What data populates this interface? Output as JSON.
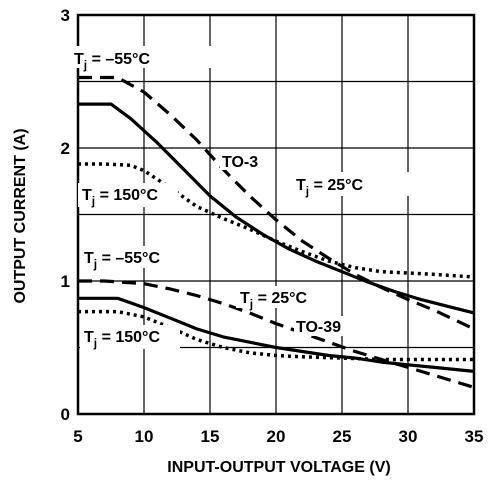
{
  "chart_data": {
    "type": "line",
    "title": "",
    "xlabel": "INPUT-OUTPUT VOLTAGE (V)",
    "ylabel": "OUTPUT CURRENT (A)",
    "xlim": [
      5,
      35
    ],
    "ylim": [
      0,
      3
    ],
    "xticks": [
      "5",
      "10",
      "15",
      "20",
      "25",
      "30",
      "35"
    ],
    "yticks": [
      "0",
      "1",
      "2",
      "3"
    ],
    "grid": true,
    "series": [
      {
        "name": "TO-3, Tj = -55°C",
        "style": "dashed",
        "x": [
          5,
          8,
          10,
          12,
          14,
          16,
          18,
          20,
          22,
          24,
          26,
          28,
          30,
          32,
          35
        ],
        "y": [
          2.53,
          2.53,
          2.42,
          2.25,
          2.06,
          1.84,
          1.64,
          1.46,
          1.3,
          1.17,
          1.05,
          0.95,
          0.86,
          0.78,
          0.64
        ]
      },
      {
        "name": "TO-3, Tj = 25°C",
        "style": "solid",
        "x": [
          5,
          7.5,
          9,
          11,
          13,
          15,
          17,
          19,
          21,
          23,
          25,
          27,
          29,
          31,
          33,
          35
        ],
        "y": [
          2.33,
          2.33,
          2.22,
          2.04,
          1.84,
          1.64,
          1.48,
          1.35,
          1.24,
          1.15,
          1.07,
          0.99,
          0.92,
          0.86,
          0.81,
          0.76
        ]
      },
      {
        "name": "TO-3, Tj = 150°C",
        "style": "dotted",
        "x": [
          5,
          7,
          9,
          10,
          12,
          14,
          16,
          18,
          20,
          22,
          24,
          26,
          28,
          30,
          32,
          35
        ],
        "y": [
          1.88,
          1.88,
          1.87,
          1.83,
          1.7,
          1.56,
          1.47,
          1.39,
          1.3,
          1.22,
          1.15,
          1.1,
          1.07,
          1.06,
          1.05,
          1.03
        ]
      },
      {
        "name": "TO-39, Tj = -55°C",
        "style": "dashed",
        "x": [
          5,
          7,
          10,
          12,
          14,
          16,
          18,
          20,
          22,
          24,
          26,
          28,
          30,
          32,
          35
        ],
        "y": [
          1.0,
          1.0,
          0.98,
          0.94,
          0.89,
          0.83,
          0.76,
          0.68,
          0.61,
          0.54,
          0.47,
          0.41,
          0.35,
          0.29,
          0.2
        ]
      },
      {
        "name": "TO-39, Tj = 25°C",
        "style": "solid",
        "x": [
          5,
          8,
          10,
          12,
          14,
          16,
          18,
          20,
          22,
          24,
          26,
          28,
          30,
          32,
          35
        ],
        "y": [
          0.87,
          0.87,
          0.8,
          0.72,
          0.64,
          0.58,
          0.54,
          0.5,
          0.47,
          0.44,
          0.42,
          0.39,
          0.37,
          0.35,
          0.32
        ]
      },
      {
        "name": "TO-39, Tj = 150°C",
        "style": "dotted",
        "x": [
          5,
          8,
          10,
          12,
          14,
          16,
          18,
          20,
          22,
          25,
          28,
          30,
          35
        ],
        "y": [
          0.77,
          0.77,
          0.73,
          0.65,
          0.56,
          0.5,
          0.46,
          0.44,
          0.43,
          0.42,
          0.41,
          0.41,
          0.41
        ]
      }
    ],
    "annotations": [
      {
        "id": "ann_to3_m55",
        "main": "T",
        "sub": "j",
        "rest": " = –55°C"
      },
      {
        "id": "ann_to3_label",
        "text": "TO-3"
      },
      {
        "id": "ann_to3_25",
        "main": "T",
        "sub": "j",
        "rest": " = 25°C"
      },
      {
        "id": "ann_to3_150",
        "main": "T",
        "sub": "j",
        "rest": " = 150°C"
      },
      {
        "id": "ann_to39_m55",
        "main": "T",
        "sub": "j",
        "rest": " = –55°C"
      },
      {
        "id": "ann_to39_25",
        "main": "T",
        "sub": "j",
        "rest": " = 25°C"
      },
      {
        "id": "ann_to39_label",
        "text": "TO-39"
      },
      {
        "id": "ann_to39_150",
        "main": "T",
        "sub": "j",
        "rest": " = 150°C"
      }
    ]
  }
}
